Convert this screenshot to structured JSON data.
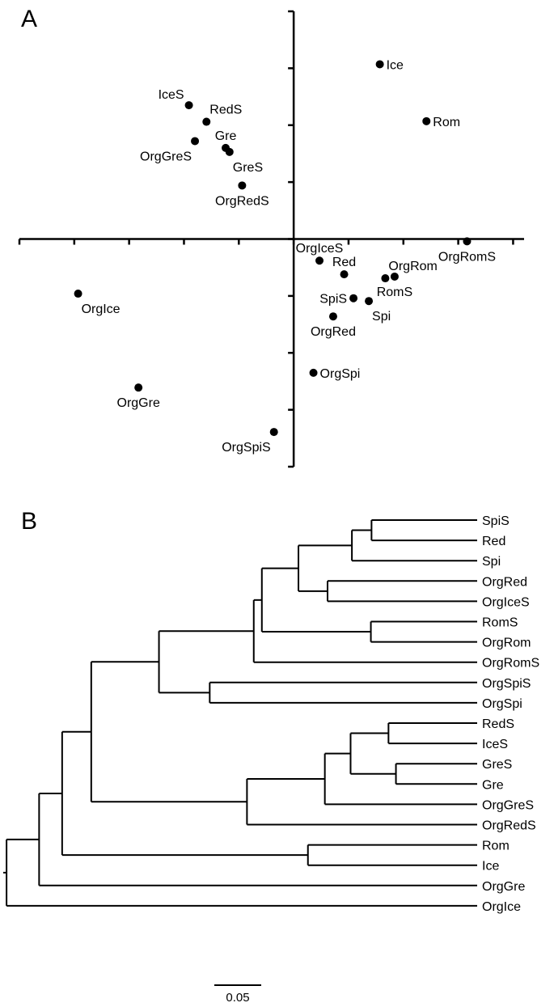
{
  "panels": {
    "a": {
      "letter": "A"
    },
    "b": {
      "letter": "B"
    }
  },
  "chart_data": [
    {
      "type": "scatter",
      "panel": "A",
      "title": "",
      "xlabel": "",
      "ylabel": "",
      "xlim": [
        -5.0,
        4.2
      ],
      "ylim": [
        -4.0,
        4.0
      ],
      "x_ticks": [
        -5,
        -4,
        -3,
        -2,
        -1,
        0,
        1,
        2,
        3,
        4
      ],
      "y_ticks": [
        -4,
        -3,
        -2,
        -1,
        0,
        1,
        2,
        3,
        4
      ],
      "grid": false,
      "points": [
        {
          "label": "Ice",
          "x": 1.57,
          "y": 3.07,
          "label_pos": "right"
        },
        {
          "label": "Rom",
          "x": 2.42,
          "y": 2.07,
          "label_pos": "right"
        },
        {
          "label": "IceS",
          "x": -1.91,
          "y": 2.35,
          "label_pos": "top-left"
        },
        {
          "label": "RedS",
          "x": -1.59,
          "y": 2.06,
          "label_pos": "top-right"
        },
        {
          "label": "Gre",
          "x": -1.24,
          "y": 1.6,
          "label_pos": "top"
        },
        {
          "label": "OrgGreS",
          "x": -1.8,
          "y": 1.72,
          "label_pos": "bottom-left"
        },
        {
          "label": "GreS",
          "x": -1.17,
          "y": 1.53,
          "label_pos": "bottom-right"
        },
        {
          "label": "OrgRedS",
          "x": -0.94,
          "y": 0.94,
          "label_pos": "bottom"
        },
        {
          "label": "OrgRomS",
          "x": 3.16,
          "y": -0.04,
          "label_pos": "bottom"
        },
        {
          "label": "OrgIceS",
          "x": 0.47,
          "y": -0.38,
          "label_pos": "top"
        },
        {
          "label": "Red",
          "x": 0.92,
          "y": -0.62,
          "label_pos": "top"
        },
        {
          "label": "OrgRom",
          "x": 1.67,
          "y": -0.69,
          "label_pos": "top-right"
        },
        {
          "label": "RomS",
          "x": 1.84,
          "y": -0.66,
          "label_pos": "bottom"
        },
        {
          "label": "SpiS",
          "x": 1.09,
          "y": -1.04,
          "label_pos": "left"
        },
        {
          "label": "Spi",
          "x": 1.37,
          "y": -1.09,
          "label_pos": "bottom-right"
        },
        {
          "label": "OrgRed",
          "x": 0.72,
          "y": -1.36,
          "label_pos": "bottom"
        },
        {
          "label": "OrgSpi",
          "x": 0.36,
          "y": -2.35,
          "label_pos": "right"
        },
        {
          "label": "OrgIce",
          "x": -3.93,
          "y": -0.96,
          "label_pos": "bottom-right"
        },
        {
          "label": "OrgGre",
          "x": -2.83,
          "y": -2.61,
          "label_pos": "bottom"
        },
        {
          "label": "OrgSpiS",
          "x": -0.36,
          "y": -3.39,
          "label_pos": "bottom-left"
        }
      ]
    },
    {
      "type": "dendrogram",
      "panel": "B",
      "title": "",
      "scale_bar": {
        "label": "0.05",
        "value": 0.05
      },
      "leaves": [
        "SpiS",
        "Red",
        "Spi",
        "OrgRed",
        "OrgIceS",
        "RomS",
        "OrgRom",
        "OrgRomS",
        "OrgSpiS",
        "OrgSpi",
        "RedS",
        "IceS",
        "GreS",
        "Gre",
        "OrgGreS",
        "OrgRedS",
        "Rom",
        "Ice",
        "OrgGre",
        "OrgIce"
      ],
      "tree": {
        "h": 0,
        "children": [
          {
            "h": 0.007,
            "children": [
              {
                "h": 0.0757,
                "children": [
                  {
                    "h": 0.1243,
                    "children": [
                      {
                        "h": 0.1857,
                        "children": [
                          {
                            "h": 0.3286,
                            "children": [
                              {
                                "h": 0.5286,
                                "children": [
                                  {
                                    "h": 0.5457,
                                    "children": [
                                      {
                                        "h": 0.6229,
                                        "children": [
                                          {
                                            "h": 0.7357,
                                            "children": [
                                              {
                                                "h": 0.7771,
                                                "children": [
                                                  {
                                                    "leaf": "SpiS"
                                                  },
                                                  {
                                                    "leaf": "Red"
                                                  }
                                                ]
                                              },
                                              {
                                                "leaf": "Spi"
                                              }
                                            ]
                                          },
                                          {
                                            "h": 0.6843,
                                            "children": [
                                              {
                                                "leaf": "OrgRed"
                                              },
                                              {
                                                "leaf": "OrgIceS"
                                              }
                                            ]
                                          }
                                        ]
                                      },
                                      {
                                        "h": 0.7757,
                                        "children": [
                                          {
                                            "leaf": "RomS"
                                          },
                                          {
                                            "leaf": "OrgRom"
                                          }
                                        ]
                                      }
                                    ]
                                  },
                                  {
                                    "leaf": "OrgRomS"
                                  }
                                ]
                              },
                              {
                                "h": 0.4357,
                                "children": [
                                  {
                                    "leaf": "OrgSpiS"
                                  },
                                  {
                                    "leaf": "OrgSpi"
                                  }
                                ]
                              }
                            ]
                          },
                          {
                            "h": 0.5143,
                            "children": [
                              {
                                "h": 0.6786,
                                "children": [
                                  {
                                    "h": 0.7329,
                                    "children": [
                                      {
                                        "h": 0.8129,
                                        "children": [
                                          {
                                            "leaf": "RedS"
                                          },
                                          {
                                            "leaf": "IceS"
                                          }
                                        ]
                                      },
                                      {
                                        "h": 0.8286,
                                        "children": [
                                          {
                                            "leaf": "GreS"
                                          },
                                          {
                                            "leaf": "Gre"
                                          }
                                        ]
                                      }
                                    ]
                                  },
                                  {
                                    "leaf": "OrgGreS"
                                  }
                                ]
                              },
                              {
                                "leaf": "OrgRedS"
                              }
                            ]
                          }
                        ]
                      },
                      {
                        "h": 0.6429,
                        "children": [
                          {
                            "leaf": "Rom"
                          },
                          {
                            "leaf": "Ice"
                          }
                        ]
                      }
                    ]
                  },
                  {
                    "leaf": "OrgGre"
                  }
                ]
              },
              {
                "leaf": "OrgIce"
              }
            ]
          }
        ]
      }
    }
  ]
}
